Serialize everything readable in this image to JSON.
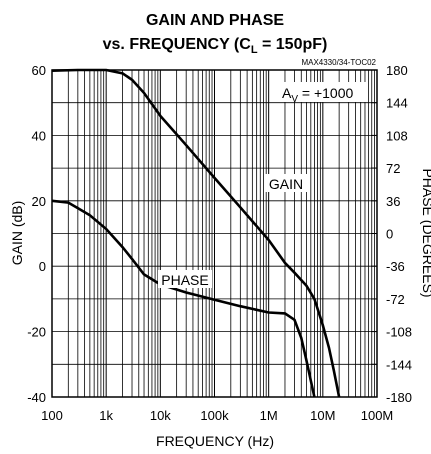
{
  "chart_data": {
    "type": "line",
    "title_line1": "GAIN AND PHASE",
    "title_line2_prefix": "vs. FREQUENCY (C",
    "title_line2_sub": "L",
    "title_line2_suffix": " = 150pF)",
    "part_label": "MAX4330/34-TOC02",
    "xlabel": "FREQUENCY (Hz)",
    "ylabel_left": "GAIN (dB)",
    "ylabel_right": "PHASE (DEGREES)",
    "x_scale": "log",
    "xlim": [
      100,
      100000000
    ],
    "ylim_left": [
      -40,
      60
    ],
    "ylim_right": [
      -180,
      180
    ],
    "grid": true,
    "x_ticks": [
      {
        "value": 100,
        "label": "100"
      },
      {
        "value": 1000,
        "label": "1k"
      },
      {
        "value": 10000,
        "label": "10k"
      },
      {
        "value": 100000,
        "label": "100k"
      },
      {
        "value": 1000000,
        "label": "1M"
      },
      {
        "value": 10000000,
        "label": "10M"
      },
      {
        "value": 100000000,
        "label": "100M"
      }
    ],
    "y_ticks_left": [
      {
        "value": 60,
        "label": "60"
      },
      {
        "value": 40,
        "label": "40"
      },
      {
        "value": 20,
        "label": "20"
      },
      {
        "value": 0,
        "label": "0"
      },
      {
        "value": -20,
        "label": "-20"
      },
      {
        "value": -40,
        "label": "-40"
      }
    ],
    "y_ticks_right": [
      {
        "value": 180,
        "label": "180"
      },
      {
        "value": 144,
        "label": "144"
      },
      {
        "value": 108,
        "label": "108"
      },
      {
        "value": 72,
        "label": "72"
      },
      {
        "value": 36,
        "label": "36"
      },
      {
        "value": 0,
        "label": "0"
      },
      {
        "value": -36,
        "label": "-36"
      },
      {
        "value": -72,
        "label": "-72"
      },
      {
        "value": -108,
        "label": "-108"
      },
      {
        "value": -144,
        "label": "-144"
      },
      {
        "value": -180,
        "label": "-180"
      }
    ],
    "annotation": {
      "prefix": "A",
      "sub": "V",
      "suffix": " = +1000"
    },
    "series": [
      {
        "name": "GAIN",
        "axis": "left",
        "x": [
          100,
          300,
          1000,
          2000,
          3000,
          5000,
          10000,
          30000,
          100000,
          300000,
          1000000,
          2000000,
          3000000,
          5000000,
          7000000,
          10000000,
          13000000,
          16000000,
          20000000
        ],
        "y": [
          59.8,
          60,
          60,
          59,
          57,
          53,
          46,
          37,
          27,
          18,
          8,
          1,
          -2,
          -6,
          -10,
          -18,
          -25,
          -32,
          -40
        ]
      },
      {
        "name": "PHASE",
        "axis": "right",
        "x": [
          100,
          200,
          300,
          500,
          1000,
          2000,
          3000,
          5000,
          10000,
          30000,
          100000,
          300000,
          1000000,
          2000000,
          3000000,
          4000000,
          5000000,
          6000000,
          7000000
        ],
        "y": [
          36,
          34,
          28,
          20,
          5,
          -15,
          -28,
          -45,
          -56,
          -65,
          -73,
          -80,
          -87,
          -88,
          -95,
          -115,
          -140,
          -162,
          -180
        ]
      }
    ]
  }
}
